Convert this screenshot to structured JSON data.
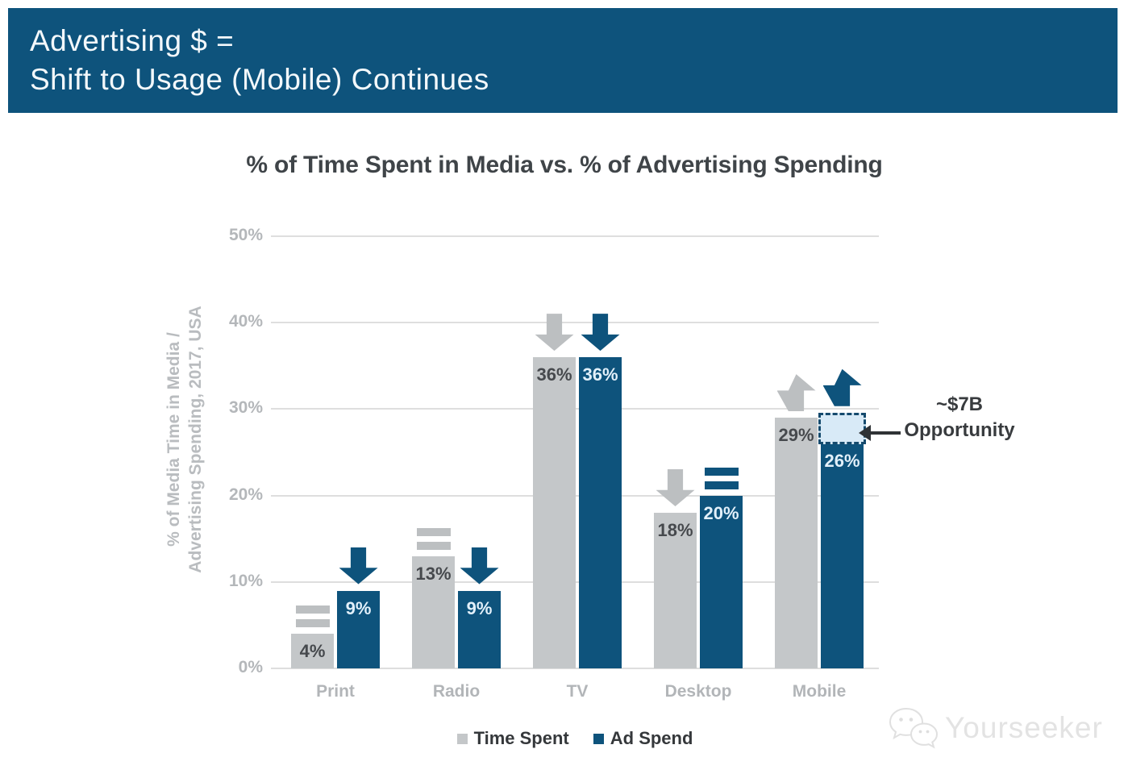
{
  "header": {
    "line1": "Advertising $ =",
    "line2": "Shift to Usage (Mobile) Continues"
  },
  "chart_data": {
    "type": "bar",
    "title": "% of Time Spent in Media vs. % of Advertising Spending",
    "ylabel": [
      "% of Media Time in Media /",
      "Advertising Spending, 2017, USA"
    ],
    "categories": [
      "Print",
      "Radio",
      "TV",
      "Desktop",
      "Mobile"
    ],
    "series": [
      {
        "name": "Time Spent",
        "color": "#c4c7c9",
        "values": [
          4,
          13,
          36,
          18,
          29
        ],
        "labels": [
          "4%",
          "13%",
          "36%",
          "18%",
          "29%"
        ],
        "trend_icons": [
          "equals",
          "equals",
          "down",
          "down",
          "up"
        ],
        "trend_color": "#bcbfc1",
        "label_color": "#46494d"
      },
      {
        "name": "Ad Spend",
        "color": "#0e537c",
        "values": [
          9,
          9,
          36,
          20,
          26
        ],
        "labels": [
          "9%",
          "9%",
          "36%",
          "20%",
          "26%"
        ],
        "trend_icons": [
          "down",
          "down",
          "down",
          "equals",
          "up"
        ],
        "trend_color": "#0e537c",
        "label_color": "#e2f0fa"
      }
    ],
    "yticks": [
      {
        "value": 0,
        "label": "0%"
      },
      {
        "value": 10,
        "label": "10%"
      },
      {
        "value": 20,
        "label": "20%"
      },
      {
        "value": 30,
        "label": "30%"
      },
      {
        "value": 40,
        "label": "40%"
      },
      {
        "value": 50,
        "label": "50%"
      }
    ],
    "ylim": [
      0,
      50
    ],
    "grid": true,
    "legend_position": "bottom",
    "annotation": {
      "line1": "~$7B",
      "line2": "Opportunity",
      "gap_from": 26,
      "gap_to": 29.6,
      "box_fill": "#d8eaf7",
      "box_border": "#154a6d"
    }
  },
  "legend": {
    "items": [
      {
        "label": "Time Spent",
        "color": "#c4c7c9"
      },
      {
        "label": "Ad Spend",
        "color": "#0e537c"
      }
    ]
  },
  "watermark": {
    "text": "Yourseeker"
  },
  "colors": {
    "banner_bg": "#0e537c",
    "banner_text": "#f3f8fb",
    "grid": "#dedede",
    "axis_text": "#b4b7ba"
  }
}
